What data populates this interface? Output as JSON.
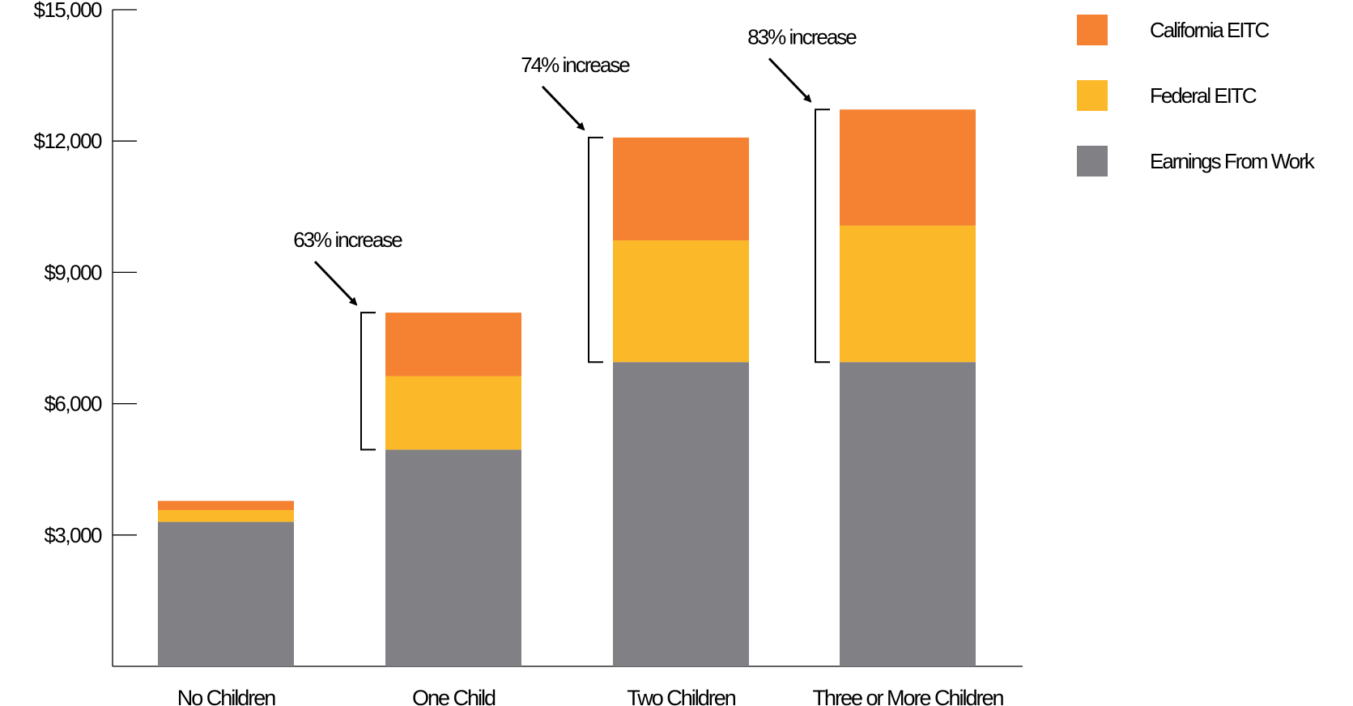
{
  "chart_data": {
    "type": "bar",
    "stacked": true,
    "categories": [
      "No Children",
      "One Child",
      "Two Children",
      "Three or More Children"
    ],
    "series": [
      {
        "name": "Earnings From Work",
        "values": [
          3300,
          4950,
          6950,
          6950
        ],
        "color": "#818085"
      },
      {
        "name": "Federal EITC",
        "values": [
          270,
          1680,
          2780,
          3120
        ],
        "color": "#FBB829"
      },
      {
        "name": "California EITC",
        "values": [
          210,
          1450,
          2350,
          2650
        ],
        "color": "#F58232"
      }
    ],
    "yticks": [
      3000,
      6000,
      9000,
      12000,
      15000
    ],
    "ytick_labels": [
      "$3,000",
      "$6,000",
      "$9,000",
      "$12,000",
      "$15,000"
    ],
    "ylim": [
      0,
      15000
    ],
    "grid": false,
    "legend_position": "top-right",
    "legend_order": [
      "California EITC",
      "Federal EITC",
      "Earnings From Work"
    ],
    "annotations": [
      {
        "category": "One Child",
        "text": "63% increase",
        "from": 4950,
        "to": 8080
      },
      {
        "category": "Two Children",
        "text": "74% increase",
        "from": 6950,
        "to": 12080
      },
      {
        "category": "Three or More Children",
        "text": "83% increase",
        "from": 6950,
        "to": 12720
      }
    ],
    "title": "",
    "xlabel": "",
    "ylabel": ""
  }
}
